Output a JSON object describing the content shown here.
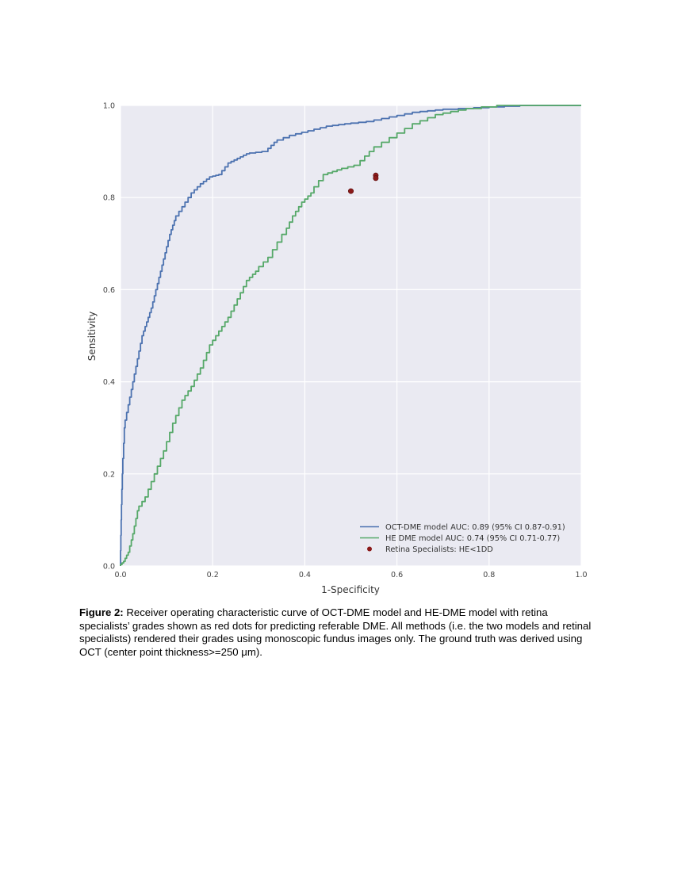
{
  "chart_data": {
    "type": "line",
    "title": "",
    "xlabel": "1-Specificity",
    "ylabel": "Sensitivity",
    "xlim": [
      0,
      1
    ],
    "ylim": [
      0,
      1
    ],
    "grid": true,
    "legend_position": "lower right",
    "x_ticks": [
      "0.0",
      "0.2",
      "0.4",
      "0.6",
      "0.8",
      "1.0"
    ],
    "y_ticks": [
      "0.0",
      "0.2",
      "0.4",
      "0.6",
      "0.8",
      "1.0"
    ],
    "series": [
      {
        "name": "OCT-DME model AUC: 0.89 (95% CI 0.87-0.91)",
        "color": "#4c72b0",
        "style": "step",
        "x": [
          0,
          0.002,
          0.005,
          0.01,
          0.02,
          0.03,
          0.04,
          0.05,
          0.06,
          0.07,
          0.08,
          0.09,
          0.1,
          0.11,
          0.12,
          0.14,
          0.16,
          0.18,
          0.2,
          0.22,
          0.24,
          0.26,
          0.28,
          0.32,
          0.34,
          0.38,
          0.42,
          0.46,
          0.5,
          0.55,
          0.6,
          0.65,
          0.7,
          0.8,
          0.9,
          1.0
        ],
        "y": [
          0,
          0.1,
          0.2,
          0.3,
          0.35,
          0.4,
          0.45,
          0.5,
          0.53,
          0.56,
          0.6,
          0.64,
          0.68,
          0.72,
          0.75,
          0.78,
          0.81,
          0.83,
          0.845,
          0.85,
          0.875,
          0.885,
          0.895,
          0.9,
          0.92,
          0.935,
          0.945,
          0.955,
          0.96,
          0.965,
          0.975,
          0.985,
          0.99,
          0.995,
          1.0,
          1.0
        ]
      },
      {
        "name": "HE DME model AUC: 0.74 (95% CI 0.71-0.77)",
        "color": "#55a868",
        "style": "step",
        "x": [
          0,
          0.01,
          0.02,
          0.03,
          0.04,
          0.06,
          0.08,
          0.1,
          0.12,
          0.14,
          0.16,
          0.18,
          0.2,
          0.22,
          0.24,
          0.26,
          0.28,
          0.3,
          0.33,
          0.36,
          0.38,
          0.4,
          0.42,
          0.45,
          0.48,
          0.52,
          0.55,
          0.6,
          0.65,
          0.7,
          0.75,
          0.85,
          1.0
        ],
        "y": [
          0,
          0.01,
          0.03,
          0.07,
          0.12,
          0.15,
          0.2,
          0.25,
          0.31,
          0.36,
          0.39,
          0.43,
          0.48,
          0.51,
          0.54,
          0.58,
          0.62,
          0.64,
          0.67,
          0.72,
          0.76,
          0.79,
          0.81,
          0.85,
          0.86,
          0.87,
          0.9,
          0.93,
          0.96,
          0.98,
          0.99,
          1.0,
          1.0
        ]
      },
      {
        "name": "Retina Specialists: HE<1DD",
        "color": "#8b1a1a",
        "style": "scatter",
        "x": [
          0.5,
          0.554,
          0.554
        ],
        "y": [
          0.814,
          0.848,
          0.842
        ]
      }
    ]
  },
  "legend": {
    "items": [
      {
        "label": "OCT-DME model AUC: 0.89 (95% CI 0.87-0.91)",
        "color": "#4c72b0",
        "marker": "line"
      },
      {
        "label": "HE DME model AUC: 0.74 (95% CI 0.71-0.77)",
        "color": "#55a868",
        "marker": "line"
      },
      {
        "label": "Retina Specialists: HE<1DD",
        "color": "#8b1a1a",
        "marker": "dot"
      }
    ]
  },
  "caption": {
    "label": "Figure 2:",
    "text": " Receiver operating characteristic curve of OCT-DME model and HE-DME model with retina specialists’ grades shown as red dots for predicting referable DME. All methods (i.e. the two models and retinal specialists) rendered their grades using monoscopic fundus images only. The ground truth was derived using OCT (center point thickness>=250 μm)."
  },
  "colors": {
    "plot_background": "#eaeaf2",
    "grid": "#ffffff"
  }
}
